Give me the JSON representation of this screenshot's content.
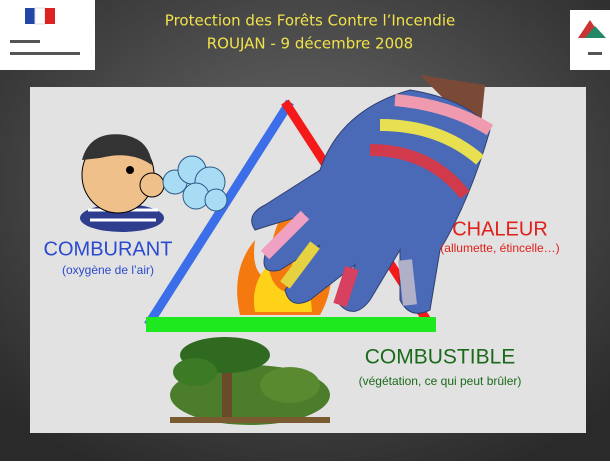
{
  "header": {
    "title": "Protection des Forêts Contre l’Incendie",
    "subtitle": "ROUJAN - 9 décembre 2008"
  },
  "labels": [
    {
      "title": "COMBURANT",
      "detail": "(oxygène de l’air)"
    },
    {
      "title": "CHALEUR",
      "detail": "(allumette, étincelle…)"
    },
    {
      "title": "COMBUSTIBLE",
      "detail": "(végétation, ce qui peut brûler)"
    }
  ]
}
